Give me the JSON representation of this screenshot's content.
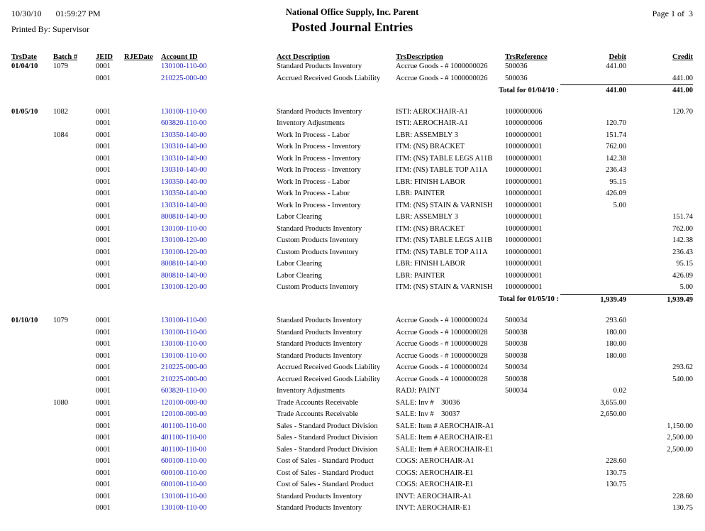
{
  "report": {
    "print_date": "10/30/10",
    "print_time": "01:59:27 PM",
    "printed_by": "Printed By: Supervisor",
    "company": "National Office Supply, Inc. Parent",
    "title": "Posted Journal Entries",
    "page_label": "Page 1 of  3"
  },
  "colors": {
    "account_link": "#2222bb",
    "text": "#000000",
    "background": "#ffffff"
  },
  "table": {
    "columns": [
      {
        "key": "trs_date",
        "label": "TrsDate"
      },
      {
        "key": "batch",
        "label": "Batch #"
      },
      {
        "key": "jeid",
        "label": "JEID"
      },
      {
        "key": "rje_date",
        "label": "RJEDate"
      },
      {
        "key": "account_id",
        "label": "Account ID"
      },
      {
        "key": "acct_description",
        "label": "Acct Description"
      },
      {
        "key": "trs_description",
        "label": "TrsDescription"
      },
      {
        "key": "trs_reference",
        "label": "TrsReference"
      },
      {
        "key": "debit",
        "label": "Debit",
        "align": "right"
      },
      {
        "key": "credit",
        "label": "Credit",
        "align": "right"
      }
    ],
    "groups": [
      {
        "date": "01/04/10",
        "entries": [
          {
            "batch": "1079",
            "jeid": "0001",
            "account_id": "130100-110-00",
            "acct_description": "Standard Products Inventory",
            "trs_description": "Accrue Goods - # 1000000026",
            "trs_reference": "500036",
            "debit": "441.00"
          },
          {
            "jeid": "0001",
            "account_id": "210225-000-00",
            "acct_description": "Accrued Received Goods Liability",
            "trs_description": "Accrue Goods - # 1000000026",
            "trs_reference": "500036",
            "credit": "441.00"
          }
        ],
        "total": {
          "label": "Total for 01/04/10 :",
          "debit": "441.00",
          "credit": "441.00"
        }
      },
      {
        "date": "01/05/10",
        "entries": [
          {
            "batch": "1082",
            "jeid": "0001",
            "account_id": "130100-110-00",
            "acct_description": "Standard Products Inventory",
            "trs_description": "ISTI: AEROCHAIR-A1",
            "trs_reference": "1000000006",
            "credit": "120.70"
          },
          {
            "jeid": "0001",
            "account_id": "603820-110-00",
            "acct_description": "Inventory Adjustments",
            "trs_description": "ISTI: AEROCHAIR-A1",
            "trs_reference": "1000000006",
            "debit": "120.70"
          },
          {
            "batch": "1084",
            "jeid": "0001",
            "account_id": "130350-140-00",
            "acct_description": "Work In Process - Labor",
            "trs_description": "LBR: ASSEMBLY 3",
            "trs_reference": "1000000001",
            "debit": "151.74"
          },
          {
            "jeid": "0001",
            "account_id": "130310-140-00",
            "acct_description": "Work In Process - Inventory",
            "trs_description": "ITM: (NS) BRACKET",
            "trs_reference": "1000000001",
            "debit": "762.00"
          },
          {
            "jeid": "0001",
            "account_id": "130310-140-00",
            "acct_description": "Work In Process - Inventory",
            "trs_description": "ITM: (NS) TABLE LEGS A11B",
            "trs_reference": "1000000001",
            "debit": "142.38"
          },
          {
            "jeid": "0001",
            "account_id": "130310-140-00",
            "acct_description": "Work In Process - Inventory",
            "trs_description": "ITM: (NS) TABLE TOP A11A",
            "trs_reference": "1000000001",
            "debit": "236.43"
          },
          {
            "jeid": "0001",
            "account_id": "130350-140-00",
            "acct_description": "Work In Process - Labor",
            "trs_description": "LBR: FINISH LABOR",
            "trs_reference": "1000000001",
            "debit": "95.15"
          },
          {
            "jeid": "0001",
            "account_id": "130350-140-00",
            "acct_description": "Work In Process - Labor",
            "trs_description": "LBR: PAINTER",
            "trs_reference": "1000000001",
            "debit": "426.09"
          },
          {
            "jeid": "0001",
            "account_id": "130310-140-00",
            "acct_description": "Work In Process - Inventory",
            "trs_description": "ITM: (NS) STAIN & VARNISH",
            "trs_reference": "1000000001",
            "debit": "5.00"
          },
          {
            "jeid": "0001",
            "account_id": "800810-140-00",
            "acct_description": "Labor Clearing",
            "trs_description": "LBR: ASSEMBLY 3",
            "trs_reference": "1000000001",
            "credit": "151.74"
          },
          {
            "jeid": "0001",
            "account_id": "130100-110-00",
            "acct_description": "Standard Products Inventory",
            "trs_description": "ITM: (NS) BRACKET",
            "trs_reference": "1000000001",
            "credit": "762.00"
          },
          {
            "jeid": "0001",
            "account_id": "130100-120-00",
            "acct_description": "Custom Products Inventory",
            "trs_description": "ITM: (NS) TABLE LEGS A11B",
            "trs_reference": "1000000001",
            "credit": "142.38"
          },
          {
            "jeid": "0001",
            "account_id": "130100-120-00",
            "acct_description": "Custom Products Inventory",
            "trs_description": "ITM: (NS) TABLE TOP A11A",
            "trs_reference": "1000000001",
            "credit": "236.43"
          },
          {
            "jeid": "0001",
            "account_id": "800810-140-00",
            "acct_description": "Labor Clearing",
            "trs_description": "LBR: FINISH LABOR",
            "trs_reference": "1000000001",
            "credit": "95.15"
          },
          {
            "jeid": "0001",
            "account_id": "800810-140-00",
            "acct_description": "Labor Clearing",
            "trs_description": "LBR: PAINTER",
            "trs_reference": "1000000001",
            "credit": "426.09"
          },
          {
            "jeid": "0001",
            "account_id": "130100-120-00",
            "acct_description": "Custom Products Inventory",
            "trs_description": "ITM: (NS) STAIN & VARNISH",
            "trs_reference": "1000000001",
            "credit": "5.00"
          }
        ],
        "total": {
          "label": "Total for 01/05/10 :",
          "debit": "1,939.49",
          "credit": "1,939.49"
        }
      },
      {
        "date": "01/10/10",
        "entries": [
          {
            "batch": "1079",
            "jeid": "0001",
            "account_id": "130100-110-00",
            "acct_description": "Standard Products Inventory",
            "trs_description": "Accrue Goods - # 1000000024",
            "trs_reference": "500034",
            "debit": "293.60"
          },
          {
            "jeid": "0001",
            "account_id": "130100-110-00",
            "acct_description": "Standard Products Inventory",
            "trs_description": "Accrue Goods - # 1000000028",
            "trs_reference": "500038",
            "debit": "180.00"
          },
          {
            "jeid": "0001",
            "account_id": "130100-110-00",
            "acct_description": "Standard Products Inventory",
            "trs_description": "Accrue Goods - # 1000000028",
            "trs_reference": "500038",
            "debit": "180.00"
          },
          {
            "jeid": "0001",
            "account_id": "130100-110-00",
            "acct_description": "Standard Products Inventory",
            "trs_description": "Accrue Goods - # 1000000028",
            "trs_reference": "500038",
            "debit": "180.00"
          },
          {
            "jeid": "0001",
            "account_id": "210225-000-00",
            "acct_description": "Accrued Received Goods Liability",
            "trs_description": "Accrue Goods - # 1000000024",
            "trs_reference": "500034",
            "credit": "293.62"
          },
          {
            "jeid": "0001",
            "account_id": "210225-000-00",
            "acct_description": "Accrued Received Goods Liability",
            "trs_description": "Accrue Goods - # 1000000028",
            "trs_reference": "500038",
            "credit": "540.00"
          },
          {
            "jeid": "0001",
            "account_id": "603820-110-00",
            "acct_description": "Inventory Adjustments",
            "trs_description": "RADJ: PAINT",
            "trs_reference": "500034",
            "debit": "0.02"
          },
          {
            "batch": "1080",
            "jeid": "0001",
            "account_id": "120100-000-00",
            "acct_description": "Trade Accounts Receivable",
            "trs_description": "SALE: Inv #    30036",
            "debit": "3,655.00"
          },
          {
            "jeid": "0001",
            "account_id": "120100-000-00",
            "acct_description": "Trade Accounts Receivable",
            "trs_description": "SALE: Inv #    30037",
            "debit": "2,650.00"
          },
          {
            "jeid": "0001",
            "account_id": "401100-110-00",
            "acct_description": "Sales - Standard Product Division",
            "trs_description": "SALE: Item # AEROCHAIR-A1",
            "credit": "1,150.00"
          },
          {
            "jeid": "0001",
            "account_id": "401100-110-00",
            "acct_description": "Sales - Standard Product Division",
            "trs_description": "SALE: Item # AEROCHAIR-E1",
            "credit": "2,500.00"
          },
          {
            "jeid": "0001",
            "account_id": "401100-110-00",
            "acct_description": "Sales - Standard Product Division",
            "trs_description": "SALE: Item # AEROCHAIR-E1",
            "credit": "2,500.00"
          },
          {
            "jeid": "0001",
            "account_id": "600100-110-00",
            "acct_description": "Cost of Sales - Standard Product",
            "trs_description": "COGS: AEROCHAIR-A1",
            "debit": "228.60"
          },
          {
            "jeid": "0001",
            "account_id": "600100-110-00",
            "acct_description": "Cost of Sales - Standard Product",
            "trs_description": "COGS: AEROCHAIR-E1",
            "debit": "130.75"
          },
          {
            "jeid": "0001",
            "account_id": "600100-110-00",
            "acct_description": "Cost of Sales - Standard Product",
            "trs_description": "COGS: AEROCHAIR-E1",
            "debit": "130.75"
          },
          {
            "jeid": "0001",
            "account_id": "130100-110-00",
            "acct_description": "Standard Products Inventory",
            "trs_description": "INVT: AEROCHAIR-A1",
            "credit": "228.60"
          },
          {
            "jeid": "0001",
            "account_id": "130100-110-00",
            "acct_description": "Standard Products Inventory",
            "trs_description": "INVT: AEROCHAIR-E1",
            "credit": "130.75"
          }
        ],
        "total": null
      }
    ]
  }
}
